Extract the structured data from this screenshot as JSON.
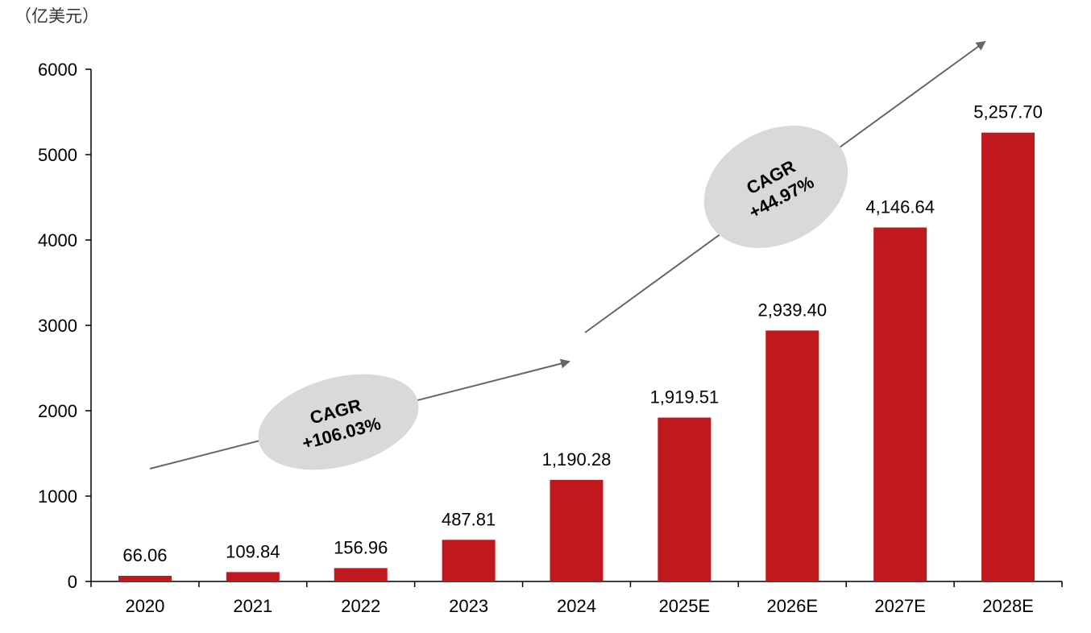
{
  "chart_data": {
    "type": "bar",
    "unit_label": "（亿美元）",
    "categories": [
      "2020",
      "2021",
      "2022",
      "2023",
      "2024",
      "2025E",
      "2026E",
      "2027E",
      "2028E"
    ],
    "values": [
      66.06,
      109.84,
      156.96,
      487.81,
      1190.28,
      1919.51,
      2939.4,
      4146.64,
      5257.7
    ],
    "data_labels": [
      "66.06",
      "109.84",
      "156.96",
      "487.81",
      "1,190.28",
      "1,919.51",
      "2,939.40",
      "4,146.64",
      "5,257.70"
    ],
    "y_ticks": [
      "0",
      "1000",
      "2000",
      "3000",
      "4000",
      "5000",
      "6000"
    ],
    "ylim": [
      0,
      6000
    ],
    "bar_color": "#c0181d",
    "annotations": [
      {
        "line1": "CAGR",
        "line2": "+106.03%"
      },
      {
        "line1": "CAGR",
        "line2": "+44.97%"
      }
    ],
    "grid": false
  }
}
